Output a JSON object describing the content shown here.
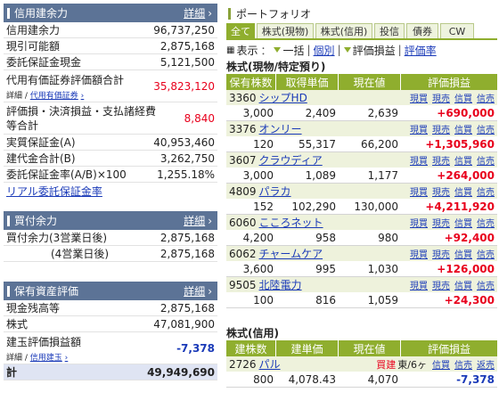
{
  "credit_power": {
    "title": "信用建余力",
    "detail": "詳細",
    "rows": [
      {
        "label": "信用建余力",
        "value": "96,737,250"
      },
      {
        "label": "現引可能額",
        "value": "2,875,168"
      },
      {
        "label": "委託保証金現金",
        "value": "5,121,500"
      }
    ],
    "sub_row": {
      "label": "代用有価証券評価額合計",
      "value": "35,823,120",
      "sub_detail": "詳細",
      "sub_link": "代用有価証券"
    },
    "fee_row": {
      "label": "評価損・決済損益・支払諸経費等合計",
      "value": "8,840"
    },
    "rows2": [
      {
        "label": "実質保証金(A)",
        "value": "40,953,460"
      },
      {
        "label": "建代金合計(B)",
        "value": "3,262,750"
      },
      {
        "label": "委託保証金率(A/B)×100",
        "value": "1,255.18%"
      }
    ],
    "realtime_link": "リアル委託保証金率"
  },
  "buy_power": {
    "title": "買付余力",
    "detail": "詳細",
    "rows": [
      {
        "label": "買付余力(3営業日後)",
        "value": "2,875,168"
      },
      {
        "label": "(4営業日後)",
        "value": "2,875,168"
      }
    ]
  },
  "assets": {
    "title": "保有資産評価",
    "detail": "詳細",
    "rows": [
      {
        "label": "現金残高等",
        "value": "2,875,168"
      },
      {
        "label": "株式",
        "value": "47,081,900"
      }
    ],
    "pl_row": {
      "label": "建玉評価損益額",
      "value": "-7,378",
      "sub_detail": "詳細",
      "sub_link": "信用建玉"
    },
    "total": {
      "label": "計",
      "value": "49,949,690"
    }
  },
  "portfolio": {
    "title": "ポートフォリオ",
    "tabs": [
      "全て",
      "株式(現物)",
      "株式(信用)",
      "投信",
      "債券",
      "CW"
    ],
    "options": {
      "display": "表示",
      "all": "一括",
      "each": "個別",
      "pl": "評価損益",
      "pl_rate": "評価率"
    },
    "cash_section": {
      "title": "株式(現物/特定預り)",
      "headers": [
        "保有株数",
        "取得単価",
        "現在値",
        "評価損益"
      ],
      "actions": [
        "現買",
        "現売",
        "信買",
        "信売"
      ],
      "stocks": [
        {
          "code": "3360",
          "name": "シップHD",
          "qty": "3,000",
          "cost": "2,409",
          "price": "2,639",
          "pl": "+690,000"
        },
        {
          "code": "3376",
          "name": "オンリー",
          "qty": "120",
          "cost": "55,317",
          "price": "66,200",
          "pl": "+1,305,960"
        },
        {
          "code": "3607",
          "name": "クラウディア",
          "qty": "3,000",
          "cost": "1,089",
          "price": "1,177",
          "pl": "+264,000"
        },
        {
          "code": "4809",
          "name": "パラカ",
          "qty": "152",
          "cost": "102,290",
          "price": "130,000",
          "pl": "+4,211,920"
        },
        {
          "code": "6060",
          "name": "こころネット",
          "qty": "4,200",
          "cost": "958",
          "price": "980",
          "pl": "+92,400"
        },
        {
          "code": "6062",
          "name": "チャームケア",
          "qty": "3,600",
          "cost": "995",
          "price": "1,030",
          "pl": "+126,000"
        },
        {
          "code": "9505",
          "name": "北陸電力",
          "qty": "100",
          "cost": "816",
          "price": "1,059",
          "pl": "+24,300"
        }
      ]
    },
    "margin_section": {
      "title": "株式(信用)",
      "headers": [
        "建株数",
        "建単価",
        "現在値",
        "評価損益"
      ],
      "actions": [
        "信買",
        "信売",
        "返売"
      ],
      "stocks": [
        {
          "code": "2726",
          "name": "パル",
          "badge": "買建",
          "term": "東/6ヶ",
          "qty": "800",
          "cost": "4,078.43",
          "price": "4,070",
          "pl": "-7,378"
        }
      ]
    }
  },
  "colors": {
    "header_blue": "#5c7396",
    "green": "#8fae2e",
    "row_green": "#eef2dc",
    "red": "#e8001c",
    "link": "#1a3ab8"
  }
}
